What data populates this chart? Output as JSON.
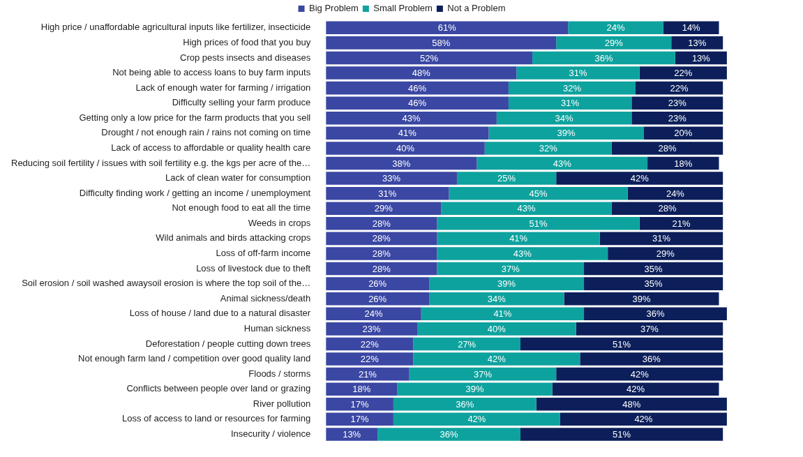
{
  "chart_data": {
    "type": "bar",
    "orientation": "horizontal",
    "stacked": true,
    "legend": "top",
    "categories": [
      "High price / unaffordable agricultural inputs like fertilizer, insecticide",
      "High prices of food that you buy",
      "Crop pests insects and diseases",
      "Not being able to access loans to buy farm inputs",
      "Lack of enough water for farming / irrigation",
      "Difficulty selling your farm produce",
      "Getting only a low price for the farm products that you sell",
      "Drought / not enough rain / rains not coming on time",
      "Lack of access to affordable or quality health care",
      "Reducing soil fertility / issues with soil fertility e.g. the kgs per acre of the…",
      "Lack of clean water for consumption",
      "Difficulty finding work / getting an income / unemployment",
      "Not enough food to eat all the time",
      "Weeds in crops",
      "Wild animals and birds attacking crops",
      "Loss of off-farm income",
      "Loss of livestock due to theft",
      "Soil erosion / soil washed awaysoil erosion is where the top soil of the…",
      "Animal sickness/death",
      "Loss of house / land due to a natural disaster",
      "Human sickness",
      "Deforestation / people cutting down trees",
      "Not enough farm land / competition over good quality land",
      "Floods / storms",
      "Conflicts between people over land or grazing",
      "River pollution",
      "Loss of access to land or resources for farming",
      "Insecurity / violence"
    ],
    "series": [
      {
        "name": "Big Problem",
        "color": "#3a47a3",
        "values": [
          61,
          58,
          52,
          48,
          46,
          46,
          43,
          41,
          40,
          38,
          33,
          31,
          29,
          28,
          28,
          28,
          28,
          26,
          26,
          24,
          23,
          22,
          22,
          21,
          18,
          17,
          17,
          13
        ],
        "value_labels": [
          "61%",
          "58%",
          "52%",
          "48%",
          "46%",
          "46%",
          "43%",
          "41%",
          "40%",
          "38%",
          "33%",
          "31%",
          "29%",
          "28%",
          "28%",
          "28%",
          "28%",
          "26%",
          "26%",
          "24%",
          "23%",
          "22%",
          "22%",
          "21%",
          "18%",
          "17%",
          "17%",
          "13%"
        ]
      },
      {
        "name": "Small Problem",
        "color": "#0ea29e",
        "values": [
          24,
          29,
          36,
          31,
          32,
          31,
          34,
          39,
          32,
          43,
          25,
          45,
          43,
          51,
          41,
          43,
          37,
          39,
          34,
          41,
          40,
          27,
          42,
          37,
          39,
          36,
          42,
          36
        ],
        "value_labels": [
          "24%",
          "29%",
          "36%",
          "31%",
          "32%",
          "31%",
          "34%",
          "39%",
          "32%",
          "43%",
          "25%",
          "45%",
          "43%",
          "51%",
          "41%",
          "43%",
          "37%",
          "39%",
          "34%",
          "41%",
          "40%",
          "27%",
          "42%",
          "37%",
          "39%",
          "36%",
          "42%",
          "36%"
        ]
      },
      {
        "name": "Not a Problem",
        "color": "#0c1f5a",
        "values": [
          14,
          13,
          13,
          22,
          22,
          23,
          23,
          20,
          28,
          18,
          42,
          24,
          28,
          21,
          31,
          29,
          35,
          35,
          39,
          36,
          37,
          51,
          36,
          42,
          42,
          48,
          42,
          51
        ],
        "value_labels": [
          "14%",
          "13%",
          "13%",
          "22%",
          "22%",
          "23%",
          "23%",
          "20%",
          "28%",
          "18%",
          "42%",
          "24%",
          "28%",
          "21%",
          "31%",
          "29%",
          "35%",
          "35%",
          "39%",
          "36%",
          "37%",
          "51%",
          "36%",
          "42%",
          "42%",
          "48%",
          "42%",
          "51%"
        ]
      }
    ]
  }
}
